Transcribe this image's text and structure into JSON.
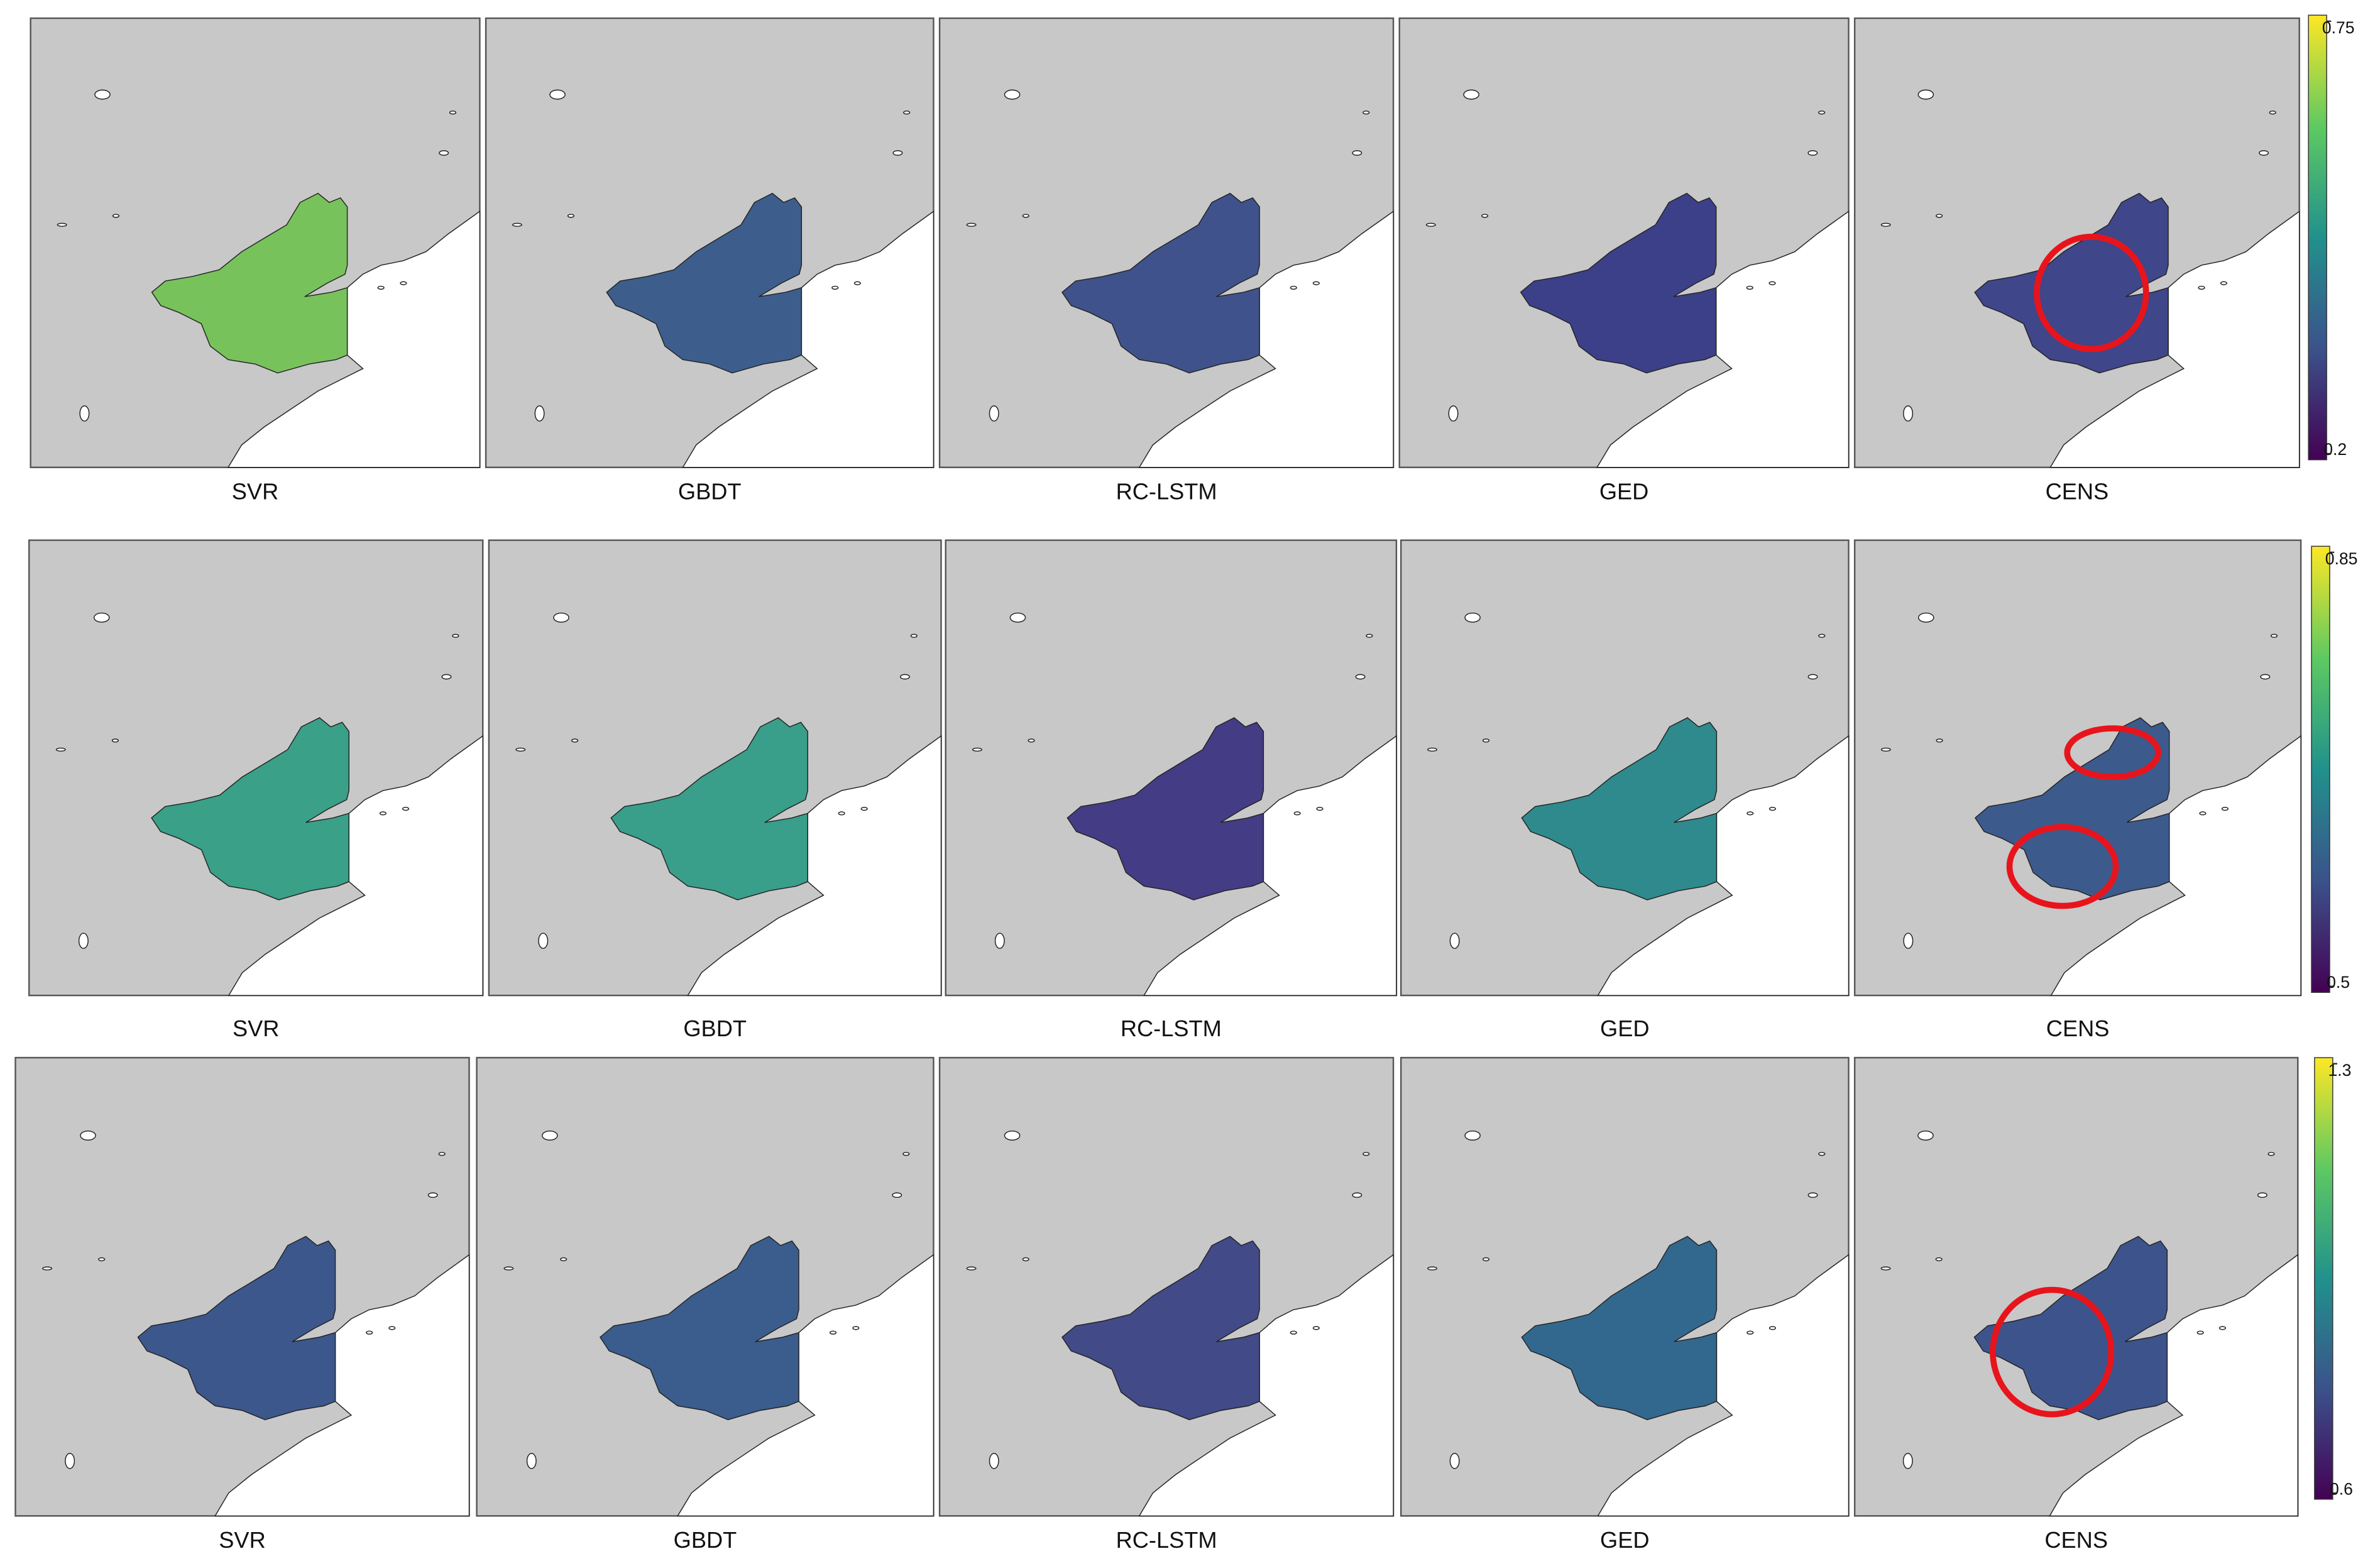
{
  "rows": [
    {
      "panels": [
        {
          "label": "SVR",
          "color": "#78c25c"
        },
        {
          "label": "GBDT",
          "color": "#3d5e8d"
        },
        {
          "label": "RC-LSTM",
          "color": "#3f528b"
        },
        {
          "label": "GED",
          "color": "#3c4088"
        },
        {
          "label": "CENS",
          "color": "#3f4689"
        }
      ],
      "colorbar": {
        "max": 0.75,
        "min": 0.2
      }
    },
    {
      "panels": [
        {
          "label": "SVR",
          "color": "#3aa088"
        },
        {
          "label": "GBDT",
          "color": "#399e8a"
        },
        {
          "label": "RC-LSTM",
          "color": "#443c84"
        },
        {
          "label": "GED",
          "color": "#2f8a8d"
        },
        {
          "label": "CENS",
          "color": "#3d5a8c"
        }
      ],
      "colorbar": {
        "max": 0.85,
        "min": 0.5
      }
    },
    {
      "panels": [
        {
          "label": "SVR",
          "color": "#3c578b"
        },
        {
          "label": "GBDT",
          "color": "#3b5d8d"
        },
        {
          "label": "RC-LSTM",
          "color": "#424a88"
        },
        {
          "label": "GED",
          "color": "#33688e"
        },
        {
          "label": "CENS",
          "color": "#3d538b"
        }
      ],
      "colorbar": {
        "max": 1.3,
        "min": 0.6
      }
    }
  ]
}
